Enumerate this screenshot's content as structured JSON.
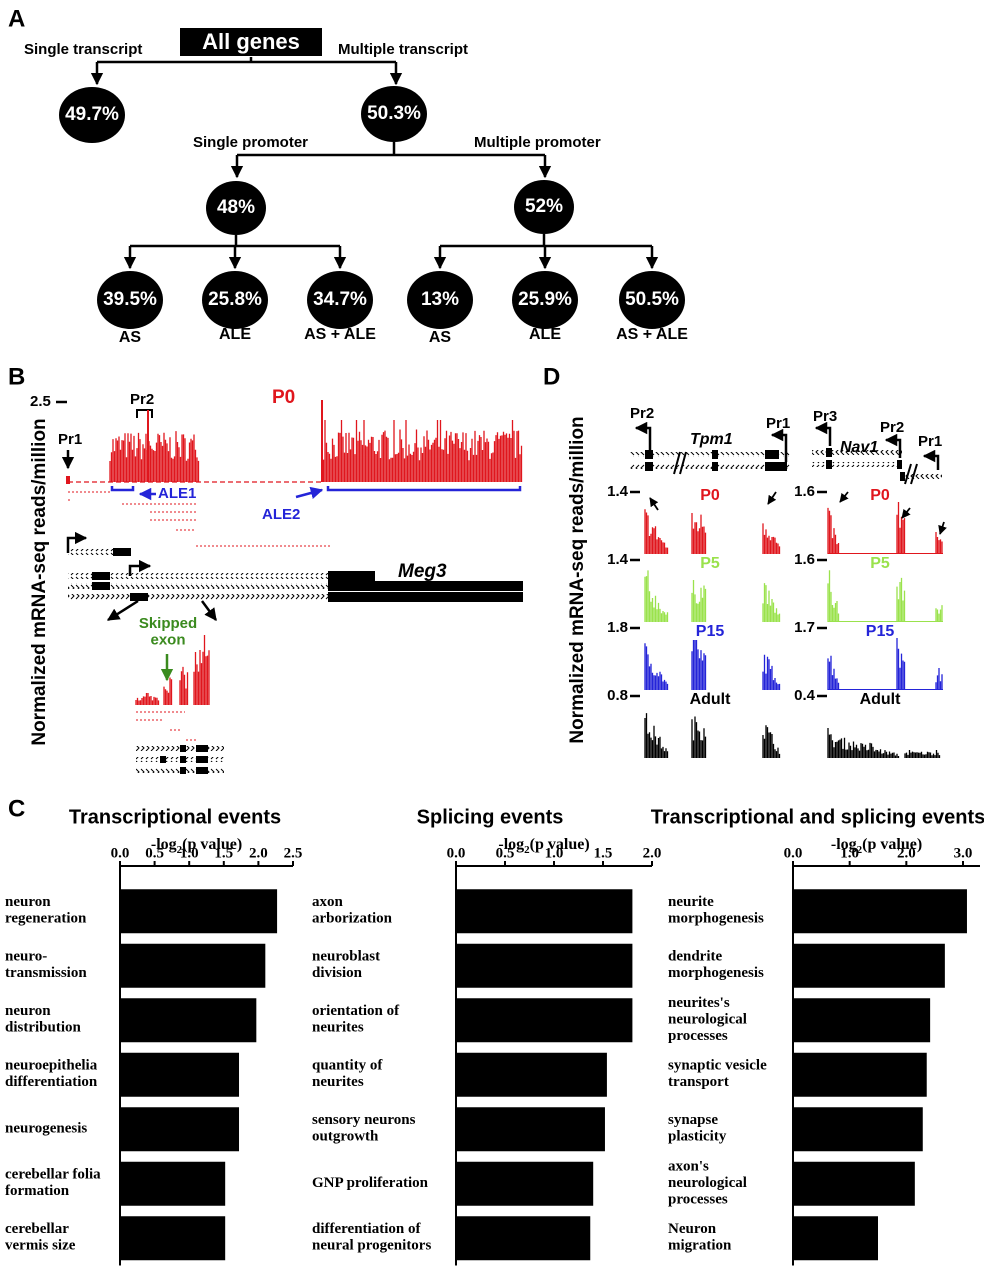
{
  "panel_a": {
    "label": "A",
    "root": "All genes",
    "level1": {
      "left": "Single transcript",
      "right": "Multiple transcript",
      "left_pct": "49.7%",
      "right_pct": "50.3%"
    },
    "level2": {
      "left": "Single promoter",
      "right": "Multiple promoter",
      "left_pct": "48%",
      "right_pct": "52%"
    },
    "level3": {
      "pcts": [
        "39.5%",
        "25.8%",
        "34.7%",
        "13%",
        "25.9%",
        "50.5%"
      ],
      "labels": [
        "AS",
        "ALE",
        "AS + ALE",
        "AS",
        "ALE",
        "AS + ALE"
      ]
    }
  },
  "panel_b": {
    "label": "B",
    "y_label": "Normalized mRNA-seq reads/million",
    "scale": "2.5",
    "sample": "P0",
    "promoters": [
      "Pr1",
      "Pr2"
    ],
    "ale": [
      "ALE1",
      "ALE2"
    ],
    "gene": "Meg3",
    "skipped": "Skipped\nexon"
  },
  "panel_c_label": "C",
  "panel_d": {
    "label": "D",
    "y_label": "Normalized mRNA-seq reads/million",
    "genes": [
      {
        "name": "Tpm1",
        "promoters": [
          "Pr2",
          "Pr1"
        ],
        "scales": [
          "1.4",
          "1.4",
          "1.8",
          "0.8"
        ]
      },
      {
        "name": "Nav1",
        "promoters": [
          "Pr3",
          "Pr2",
          "Pr1"
        ],
        "scales": [
          "1.6",
          "1.6",
          "1.7",
          "0.4"
        ]
      }
    ],
    "samples": [
      "P0",
      "P5",
      "P15",
      "Adult"
    ]
  },
  "chart_data": [
    {
      "type": "bar",
      "orientation": "horizontal",
      "title": "Transcriptional events",
      "x_label": [
        "-log",
        "2",
        "(p value)"
      ],
      "color": "#000000",
      "categories": [
        "neuron\nregeneration",
        "neuro-\ntransmission",
        "neuron\ndistribution",
        "neuroepithelia\ndifferentiation",
        "neurogenesis",
        "cerebellar folia\nformation",
        "cerebellar\nvermis size"
      ],
      "values": [
        2.27,
        2.1,
        1.97,
        1.72,
        1.72,
        1.52,
        1.52
      ],
      "xlim": [
        0,
        2.5
      ],
      "xticks": [
        {
          "value": 0,
          "label": "0.0"
        },
        {
          "value": 0.5,
          "label": "0.5"
        },
        {
          "value": 1,
          "label": "1.0"
        },
        {
          "value": 1.5,
          "label": "1.5"
        },
        {
          "value": 2,
          "label": "2.0"
        },
        {
          "value": 2.5,
          "label": "2.5"
        }
      ]
    },
    {
      "type": "bar",
      "orientation": "horizontal",
      "title": "Splicing events",
      "x_label": [
        "-log",
        "2",
        "(p value)"
      ],
      "color": "#000000",
      "categories": [
        "axon\narborization",
        "neuroblast\ndivision",
        "orientation of\nneurites",
        "quantity of\nneurites",
        "sensory neurons\noutgrowth",
        "GNP proliferation",
        "differentiation of\nneural progenitors"
      ],
      "values": [
        1.8,
        1.8,
        1.8,
        1.54,
        1.52,
        1.4,
        1.37
      ],
      "xlim": [
        0,
        2.0
      ],
      "xticks": [
        {
          "value": 0,
          "label": "0.0"
        },
        {
          "value": 0.5,
          "label": "0.5"
        },
        {
          "value": 1,
          "label": "1.0"
        },
        {
          "value": 1.5,
          "label": "1.5"
        },
        {
          "value": 2,
          "label": "2.0"
        }
      ]
    },
    {
      "type": "bar",
      "orientation": "horizontal",
      "title": "Transcriptional and splicing events",
      "x_label": [
        "-log",
        "2",
        "(p value)"
      ],
      "color": "#000000",
      "categories": [
        "neurite\nmorphogenesis",
        "dendrite\nmorphogenesis",
        "neurites's\nneurological\nprocesses",
        "synaptic vesicle\ntransport",
        "synapse\nplasticity",
        "axon's\nneurological\nprocesses",
        "Neuron\nmigration"
      ],
      "values": [
        3.07,
        2.68,
        2.42,
        2.36,
        2.29,
        2.15,
        1.5
      ],
      "xlim": [
        0,
        3.3
      ],
      "xticks": [
        {
          "value": 0,
          "label": "0.0"
        },
        {
          "value": 1,
          "label": "1.0"
        },
        {
          "value": 2,
          "label": "2.0"
        },
        {
          "value": 3,
          "label": "3.0"
        }
      ]
    }
  ]
}
